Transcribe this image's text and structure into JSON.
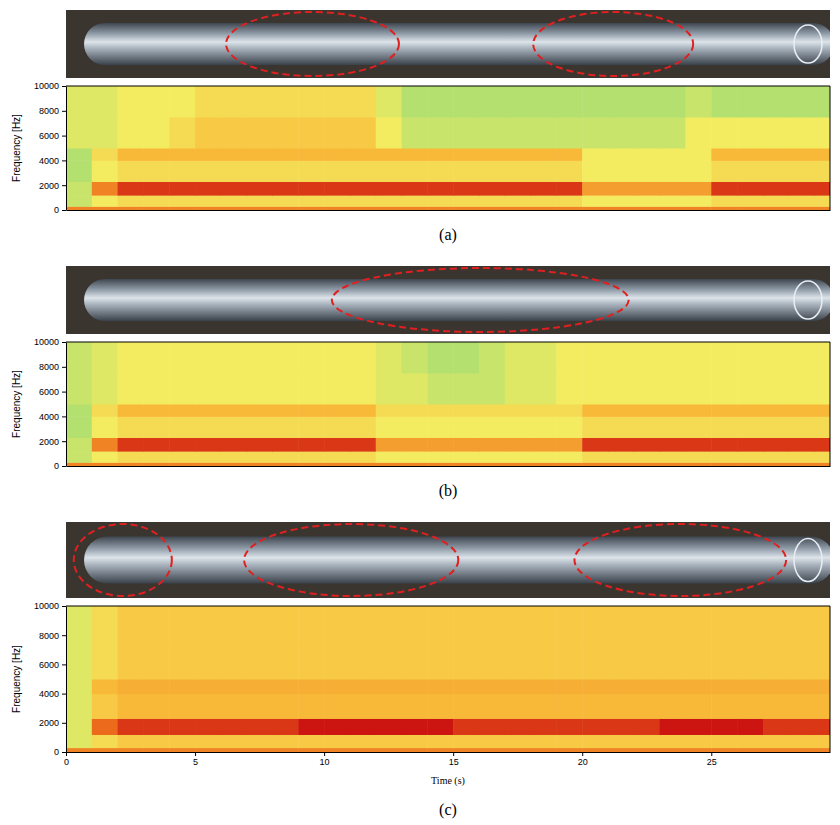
{
  "chart_data": [
    {
      "type": "heatmap",
      "title": "(a)",
      "ylabel": "Frequency [Hz]",
      "tick_labels": "y",
      "xlim": [
        0,
        29.6
      ],
      "ylim": [
        0,
        10000
      ],
      "yticks": [
        0,
        2000,
        4000,
        6000,
        8000,
        10000
      ],
      "defect_regions": [
        [
          6.2,
          12.9
        ],
        [
          18.1,
          24.3
        ]
      ],
      "x_edges": [
        0,
        1,
        2,
        3,
        4,
        5,
        6,
        7,
        8,
        9,
        10,
        11,
        12,
        13,
        14,
        15,
        16,
        17,
        18,
        19,
        20,
        21,
        22,
        23,
        24,
        25,
        26,
        27,
        28,
        29,
        30
      ],
      "y_edges": [
        0,
        300,
        1200,
        2300,
        4000,
        5000,
        7500,
        10000
      ],
      "cells": [
        [
          0.7,
          0.7,
          0.7,
          0.7,
          0.7,
          0.7,
          0.7,
          0.7,
          0.7,
          0.7,
          0.7,
          0.7,
          0.7,
          0.7,
          0.7,
          0.7,
          0.7,
          0.7,
          0.7,
          0.7,
          0.7,
          0.7,
          0.7,
          0.7,
          0.7,
          0.7,
          0.7,
          0.7,
          0.7,
          0.7
        ],
        [
          0.35,
          0.45,
          0.5,
          0.5,
          0.5,
          0.5,
          0.5,
          0.5,
          0.5,
          0.5,
          0.5,
          0.5,
          0.5,
          0.5,
          0.5,
          0.5,
          0.5,
          0.5,
          0.5,
          0.5,
          0.45,
          0.45,
          0.45,
          0.45,
          0.45,
          0.5,
          0.5,
          0.5,
          0.5,
          0.5
        ],
        [
          0.35,
          0.7,
          0.85,
          0.85,
          0.85,
          0.85,
          0.85,
          0.85,
          0.85,
          0.85,
          0.85,
          0.85,
          0.85,
          0.85,
          0.85,
          0.85,
          0.85,
          0.85,
          0.85,
          0.85,
          0.65,
          0.65,
          0.65,
          0.65,
          0.65,
          0.85,
          0.85,
          0.85,
          0.85,
          0.85
        ],
        [
          0.3,
          0.45,
          0.5,
          0.5,
          0.5,
          0.5,
          0.5,
          0.5,
          0.5,
          0.5,
          0.5,
          0.5,
          0.5,
          0.5,
          0.5,
          0.5,
          0.5,
          0.5,
          0.5,
          0.5,
          0.45,
          0.45,
          0.45,
          0.45,
          0.45,
          0.5,
          0.5,
          0.5,
          0.5,
          0.5
        ],
        [
          0.3,
          0.5,
          0.6,
          0.6,
          0.6,
          0.6,
          0.6,
          0.6,
          0.6,
          0.6,
          0.6,
          0.6,
          0.6,
          0.6,
          0.6,
          0.6,
          0.6,
          0.6,
          0.6,
          0.6,
          0.45,
          0.45,
          0.45,
          0.45,
          0.45,
          0.6,
          0.6,
          0.6,
          0.6,
          0.6
        ],
        [
          0.4,
          0.4,
          0.45,
          0.45,
          0.5,
          0.55,
          0.55,
          0.55,
          0.55,
          0.55,
          0.55,
          0.55,
          0.45,
          0.35,
          0.35,
          0.35,
          0.35,
          0.35,
          0.35,
          0.35,
          0.35,
          0.35,
          0.35,
          0.35,
          0.45,
          0.45,
          0.45,
          0.45,
          0.45,
          0.45
        ],
        [
          0.4,
          0.4,
          0.45,
          0.45,
          0.45,
          0.5,
          0.5,
          0.5,
          0.5,
          0.5,
          0.5,
          0.5,
          0.4,
          0.3,
          0.3,
          0.3,
          0.3,
          0.3,
          0.3,
          0.3,
          0.3,
          0.3,
          0.3,
          0.3,
          0.35,
          0.3,
          0.3,
          0.3,
          0.3,
          0.3
        ]
      ]
    },
    {
      "type": "heatmap",
      "title": "(b)",
      "ylabel": "Frequency [Hz]",
      "tick_labels": "y",
      "xlim": [
        0,
        29.6
      ],
      "ylim": [
        0,
        10000
      ],
      "yticks": [
        0,
        2000,
        4000,
        6000,
        8000,
        10000
      ],
      "defect_regions": [
        [
          10.3,
          21.8
        ]
      ],
      "x_edges": [
        0,
        1,
        2,
        3,
        4,
        5,
        6,
        7,
        8,
        9,
        10,
        11,
        12,
        13,
        14,
        15,
        16,
        17,
        18,
        19,
        20,
        21,
        22,
        23,
        24,
        25,
        26,
        27,
        28,
        29,
        30
      ],
      "y_edges": [
        0,
        300,
        1200,
        2300,
        4000,
        5000,
        7500,
        10000
      ],
      "cells": [
        [
          0.7,
          0.7,
          0.7,
          0.7,
          0.7,
          0.7,
          0.7,
          0.7,
          0.7,
          0.7,
          0.7,
          0.7,
          0.7,
          0.7,
          0.7,
          0.7,
          0.7,
          0.7,
          0.7,
          0.7,
          0.7,
          0.7,
          0.7,
          0.7,
          0.7,
          0.7,
          0.7,
          0.7,
          0.7,
          0.7
        ],
        [
          0.35,
          0.45,
          0.5,
          0.5,
          0.5,
          0.5,
          0.5,
          0.5,
          0.5,
          0.5,
          0.5,
          0.5,
          0.45,
          0.45,
          0.45,
          0.45,
          0.45,
          0.45,
          0.45,
          0.45,
          0.5,
          0.5,
          0.5,
          0.5,
          0.5,
          0.5,
          0.5,
          0.5,
          0.5,
          0.5
        ],
        [
          0.35,
          0.7,
          0.85,
          0.85,
          0.85,
          0.85,
          0.85,
          0.85,
          0.85,
          0.85,
          0.85,
          0.85,
          0.65,
          0.65,
          0.65,
          0.65,
          0.65,
          0.65,
          0.65,
          0.65,
          0.85,
          0.85,
          0.85,
          0.85,
          0.85,
          0.85,
          0.85,
          0.85,
          0.85,
          0.85
        ],
        [
          0.3,
          0.45,
          0.5,
          0.5,
          0.5,
          0.5,
          0.5,
          0.5,
          0.5,
          0.5,
          0.5,
          0.5,
          0.45,
          0.45,
          0.45,
          0.45,
          0.45,
          0.45,
          0.45,
          0.45,
          0.5,
          0.5,
          0.5,
          0.5,
          0.5,
          0.5,
          0.5,
          0.5,
          0.5,
          0.5
        ],
        [
          0.3,
          0.5,
          0.6,
          0.6,
          0.6,
          0.6,
          0.6,
          0.6,
          0.6,
          0.6,
          0.6,
          0.6,
          0.5,
          0.5,
          0.5,
          0.5,
          0.5,
          0.5,
          0.5,
          0.5,
          0.6,
          0.6,
          0.6,
          0.6,
          0.6,
          0.6,
          0.6,
          0.6,
          0.6,
          0.6
        ],
        [
          0.35,
          0.4,
          0.45,
          0.45,
          0.45,
          0.45,
          0.45,
          0.45,
          0.45,
          0.45,
          0.45,
          0.45,
          0.4,
          0.4,
          0.35,
          0.35,
          0.35,
          0.4,
          0.4,
          0.45,
          0.45,
          0.45,
          0.45,
          0.45,
          0.45,
          0.45,
          0.45,
          0.45,
          0.45,
          0.45
        ],
        [
          0.35,
          0.4,
          0.45,
          0.45,
          0.45,
          0.45,
          0.45,
          0.45,
          0.45,
          0.45,
          0.45,
          0.45,
          0.4,
          0.35,
          0.3,
          0.3,
          0.35,
          0.4,
          0.4,
          0.45,
          0.45,
          0.45,
          0.45,
          0.45,
          0.45,
          0.45,
          0.45,
          0.45,
          0.45,
          0.45
        ]
      ]
    },
    {
      "type": "heatmap",
      "title": "(c)",
      "ylabel": "Frequency [Hz]",
      "xlabel": "Time (s)",
      "xlim": [
        0,
        29.6
      ],
      "xticks": [
        0,
        5,
        10,
        15,
        20,
        25
      ],
      "ylim": [
        0,
        10000
      ],
      "yticks": [
        0,
        2000,
        4000,
        6000,
        8000,
        10000
      ],
      "defect_regions": [
        [
          0.3,
          4.1
        ],
        [
          6.9,
          15.2
        ],
        [
          19.7,
          27.9
        ]
      ],
      "x_edges": [
        0,
        1,
        2,
        3,
        4,
        5,
        6,
        7,
        8,
        9,
        10,
        11,
        12,
        13,
        14,
        15,
        16,
        17,
        18,
        19,
        20,
        21,
        22,
        23,
        24,
        25,
        26,
        27,
        28,
        29,
        30
      ],
      "y_edges": [
        0,
        300,
        1200,
        2300,
        4000,
        5000,
        7500,
        10000
      ],
      "cells": [
        [
          0.7,
          0.7,
          0.7,
          0.7,
          0.7,
          0.7,
          0.7,
          0.7,
          0.7,
          0.7,
          0.7,
          0.7,
          0.7,
          0.7,
          0.7,
          0.7,
          0.7,
          0.7,
          0.7,
          0.7,
          0.7,
          0.7,
          0.7,
          0.7,
          0.7,
          0.7,
          0.7,
          0.7,
          0.7,
          0.7
        ],
        [
          0.4,
          0.5,
          0.55,
          0.55,
          0.55,
          0.55,
          0.55,
          0.55,
          0.55,
          0.55,
          0.55,
          0.55,
          0.55,
          0.55,
          0.55,
          0.55,
          0.55,
          0.55,
          0.55,
          0.55,
          0.55,
          0.55,
          0.55,
          0.55,
          0.55,
          0.55,
          0.55,
          0.55,
          0.55,
          0.55
        ],
        [
          0.4,
          0.75,
          0.85,
          0.85,
          0.85,
          0.85,
          0.85,
          0.85,
          0.85,
          0.92,
          0.92,
          0.92,
          0.92,
          0.92,
          0.92,
          0.85,
          0.85,
          0.85,
          0.85,
          0.85,
          0.85,
          0.85,
          0.85,
          0.92,
          0.92,
          0.92,
          0.92,
          0.85,
          0.85,
          0.85
        ],
        [
          0.4,
          0.55,
          0.6,
          0.6,
          0.6,
          0.6,
          0.6,
          0.6,
          0.6,
          0.6,
          0.6,
          0.6,
          0.6,
          0.6,
          0.6,
          0.6,
          0.6,
          0.6,
          0.6,
          0.6,
          0.6,
          0.6,
          0.6,
          0.6,
          0.6,
          0.6,
          0.6,
          0.6,
          0.6,
          0.6
        ],
        [
          0.4,
          0.6,
          0.62,
          0.62,
          0.62,
          0.62,
          0.62,
          0.62,
          0.62,
          0.62,
          0.62,
          0.62,
          0.62,
          0.62,
          0.62,
          0.62,
          0.62,
          0.62,
          0.62,
          0.62,
          0.62,
          0.62,
          0.62,
          0.62,
          0.62,
          0.62,
          0.62,
          0.62,
          0.62,
          0.62
        ],
        [
          0.4,
          0.5,
          0.55,
          0.55,
          0.55,
          0.55,
          0.55,
          0.55,
          0.55,
          0.55,
          0.55,
          0.55,
          0.55,
          0.55,
          0.55,
          0.55,
          0.55,
          0.55,
          0.55,
          0.55,
          0.55,
          0.55,
          0.55,
          0.55,
          0.55,
          0.55,
          0.55,
          0.55,
          0.55,
          0.55
        ],
        [
          0.4,
          0.5,
          0.55,
          0.55,
          0.55,
          0.55,
          0.55,
          0.55,
          0.55,
          0.55,
          0.55,
          0.55,
          0.55,
          0.55,
          0.55,
          0.55,
          0.55,
          0.55,
          0.55,
          0.55,
          0.55,
          0.55,
          0.55,
          0.55,
          0.55,
          0.55,
          0.55,
          0.55,
          0.55,
          0.55
        ]
      ]
    }
  ]
}
